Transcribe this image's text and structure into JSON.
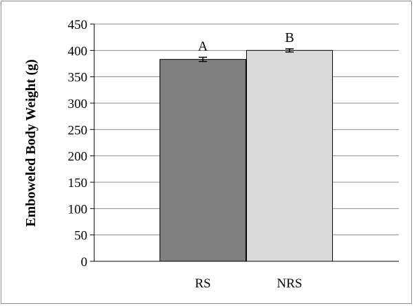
{
  "chart_data": {
    "type": "bar",
    "title": "",
    "xlabel": "",
    "ylabel": "Emboweled Body Weight (g)",
    "categories": [
      "RS",
      "NRS"
    ],
    "values": [
      383,
      400
    ],
    "errors": [
      4,
      3
    ],
    "significance_labels": [
      "A",
      "B"
    ],
    "ylim": [
      0,
      450
    ],
    "yticks": [
      "0",
      "50",
      "100",
      "150",
      "200",
      "250",
      "300",
      "350",
      "400",
      "450"
    ],
    "grid": true,
    "legend": "none",
    "colors": {
      "bars": [
        "#808080",
        "#d9d9d9"
      ],
      "bar_stroke": "#000000",
      "grid": "#8c8c8c",
      "axis": "#000000"
    }
  }
}
